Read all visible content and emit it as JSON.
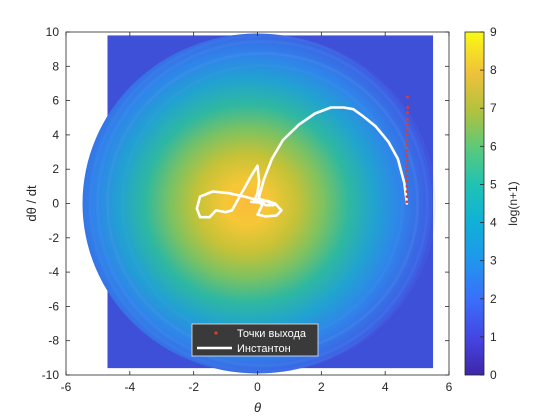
{
  "chart_data": {
    "type": "heatmap",
    "xlabel": "θ",
    "ylabel": "dθ / dt",
    "xlim": [
      -6,
      6
    ],
    "ylim": [
      -10,
      10
    ],
    "x_ticks": [
      -6,
      -4,
      -2,
      0,
      2,
      4,
      6
    ],
    "y_ticks": [
      -10,
      -8,
      -6,
      -4,
      -2,
      0,
      2,
      4,
      6,
      8,
      10
    ],
    "heatmap": {
      "x_range": [
        -4.7,
        5.5
      ],
      "y_range": [
        -9.6,
        9.8
      ],
      "center": [
        0,
        0
      ],
      "peak_value": 7.8,
      "colormap": "parula"
    },
    "colorbar": {
      "label": "log(n+1)",
      "range": [
        0,
        9
      ],
      "ticks": [
        0,
        1,
        2,
        3,
        4,
        5,
        6,
        7,
        8,
        9
      ]
    },
    "series": [
      {
        "name": "Точки выхода",
        "kind": "scatter",
        "color": "#e53b2c",
        "x": [
          4.68,
          4.68,
          4.68,
          4.68,
          4.68,
          4.68,
          4.68,
          4.68,
          4.68,
          4.68,
          4.68,
          4.68,
          4.68,
          4.68,
          4.68,
          4.69,
          4.7,
          4.7,
          4.71,
          4.7
        ],
        "y": [
          0.1,
          0.4,
          0.7,
          1.0,
          1.3,
          1.6,
          1.9,
          2.2,
          2.5,
          2.8,
          3.1,
          3.4,
          3.7,
          4.0,
          4.3,
          4.6,
          4.9,
          5.3,
          5.6,
          6.2
        ]
      },
      {
        "name": "Инстантон",
        "kind": "line",
        "color": "#ffffff",
        "x": [
          -0.2,
          0.05,
          0.3,
          0.55,
          0.75,
          0.6,
          0.25,
          0.0,
          0.15,
          0.0,
          -0.4,
          -0.9,
          -1.4,
          -1.8,
          -1.9,
          -1.8,
          -1.5,
          -1.3,
          -1.0,
          -0.8,
          -0.5,
          -0.2,
          0.0,
          0.05,
          0.0,
          -0.1,
          0.1,
          0.4,
          0.5,
          0.25,
          0.02,
          0.2,
          0.45,
          0.8,
          1.3,
          1.8,
          2.3,
          2.7,
          3.0,
          3.3,
          3.7,
          4.1,
          4.4,
          4.6,
          4.68
        ],
        "y": [
          0.1,
          0.05,
          0.15,
          0.0,
          -0.4,
          -0.7,
          -0.75,
          -0.65,
          -0.1,
          0.2,
          0.4,
          0.6,
          0.7,
          0.4,
          -0.3,
          -0.8,
          -0.8,
          -0.4,
          -0.5,
          -0.4,
          0.6,
          1.6,
          2.2,
          1.3,
          0.6,
          0.2,
          0.25,
          0.05,
          -0.1,
          -0.1,
          0.2,
          1.4,
          2.6,
          3.7,
          4.6,
          5.25,
          5.6,
          5.6,
          5.5,
          5.1,
          4.5,
          3.6,
          2.6,
          1.2,
          0.0
        ]
      }
    ],
    "legend": {
      "placement": "bottom-center",
      "entries": [
        "Точки выхода",
        "Инстантон"
      ]
    },
    "grid": false
  }
}
